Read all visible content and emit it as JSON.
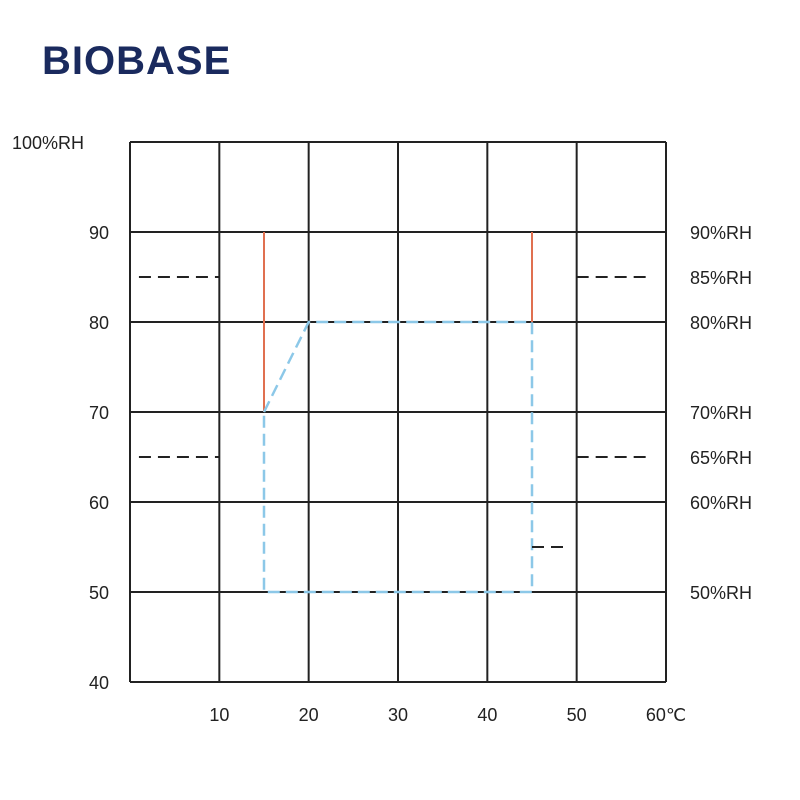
{
  "brand": {
    "logo_text": "BIOBASE",
    "color": "#1a2a5e"
  },
  "chart_data": {
    "type": "line",
    "title": "",
    "xlabel": "",
    "ylabel": "",
    "xlim": [
      0,
      60
    ],
    "ylim": [
      40,
      100
    ],
    "grid": true,
    "x_ticks": [
      {
        "value": 10,
        "label": "10"
      },
      {
        "value": 20,
        "label": "20"
      },
      {
        "value": 30,
        "label": "30"
      },
      {
        "value": 40,
        "label": "40"
      },
      {
        "value": 50,
        "label": "50"
      },
      {
        "value": 60,
        "label": "60℃"
      }
    ],
    "y_ticks_left": [
      {
        "value": 40,
        "label": "40"
      },
      {
        "value": 50,
        "label": "50"
      },
      {
        "value": 60,
        "label": "60"
      },
      {
        "value": 70,
        "label": "70"
      },
      {
        "value": 80,
        "label": "80"
      },
      {
        "value": 90,
        "label": "90"
      },
      {
        "value": 100,
        "label": "100%RH"
      }
    ],
    "y_labels_right": [
      {
        "value": 90,
        "label": "90%RH"
      },
      {
        "value": 85,
        "label": "85%RH"
      },
      {
        "value": 80,
        "label": "80%RH"
      },
      {
        "value": 70,
        "label": "70%RH"
      },
      {
        "value": 65,
        "label": "65%RH"
      },
      {
        "value": 60,
        "label": "60%RH"
      },
      {
        "value": 50,
        "label": "50%RH"
      }
    ],
    "series": [
      {
        "style": "solid",
        "color": "#e07050",
        "segments": [
          [
            [
              15,
              90
            ],
            [
              15,
              70
            ]
          ],
          [
            [
              45,
              90
            ],
            [
              45,
              80
            ]
          ]
        ]
      },
      {
        "style": "dashed",
        "color": "#8cc8e8",
        "points": [
          [
            15,
            70
          ],
          [
            20,
            80
          ],
          [
            45,
            80
          ],
          [
            45,
            50
          ],
          [
            15,
            50
          ],
          [
            15,
            70
          ]
        ]
      }
    ],
    "reference_marks": [
      {
        "y": 85,
        "x": [
          1,
          10
        ],
        "side": "left"
      },
      {
        "y": 65,
        "x": [
          1,
          10
        ],
        "side": "left"
      },
      {
        "y": 85,
        "x": [
          50,
          58
        ],
        "side": "right"
      },
      {
        "y": 65,
        "x": [
          50,
          58
        ],
        "side": "right"
      },
      {
        "y": 55,
        "x": [
          45,
          49
        ],
        "side": "inner"
      }
    ],
    "colors": {
      "grid": "#222222",
      "reference": "#222222",
      "text": "#222222"
    }
  }
}
